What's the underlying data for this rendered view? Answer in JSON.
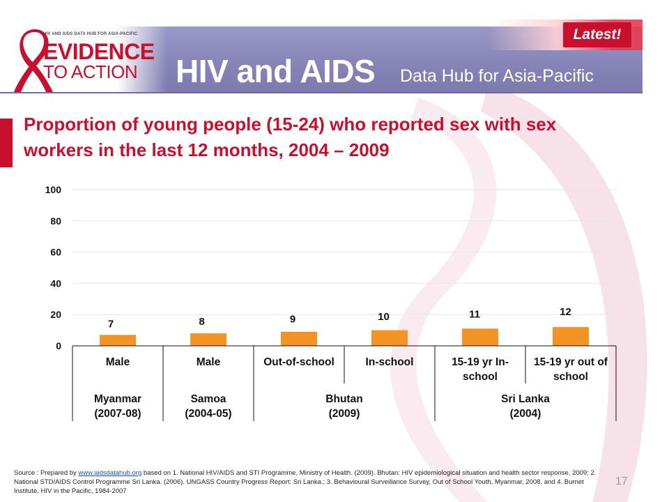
{
  "header": {
    "logo_small_text": "HIV AND AIDS DATA HUB FOR ASIA-PACIFIC",
    "logo_line1": "EVIDENCE",
    "logo_line2": "TO ACTION",
    "title": "HIV and AIDS",
    "subtitle": "Data Hub for Asia-Pacific",
    "badge": "Latest!"
  },
  "slide": {
    "title": "Proportion of young people (15-24) who reported sex with sex workers in the last 12 months, 2004 – 2009",
    "page_number": "17"
  },
  "source": {
    "prefix": "Source : Prepared by ",
    "link_text": "www.aidsdatahub.org",
    "rest": " based on 1. National HIV/AIDS and STI Programme, Ministry of Health. (2009).  Bhutan: HIV epidemiological situation and health sector response, 2009; 2. National STD/AIDS Control Programme Sri Lanka. (2006). UNGASS Country Progress Report: Sri Lanka.; 3. Behavioural Surveillance Survey, Out of School Youth, Myanmar, 2008, and 4. Burnet Institute, HIV in the Pacific, 1984-2007"
  },
  "colors": {
    "accent": "#c8102e",
    "bar": "#f39323",
    "header": "#8684b6"
  },
  "chart_data": {
    "type": "bar",
    "categories": [
      "Male",
      "Male",
      "Out-of-school",
      "In-school",
      "15-19 yr In-school",
      "15-19 yr out of school"
    ],
    "category_lines": [
      [
        "Male"
      ],
      [
        "Male"
      ],
      [
        "Out-of-school"
      ],
      [
        "In-school"
      ],
      [
        "15-19 yr In-",
        "school"
      ],
      [
        "15-19 yr out of",
        "school"
      ]
    ],
    "values": [
      7,
      8,
      9,
      10,
      11,
      12
    ],
    "data_labels": [
      "7",
      "8",
      "9",
      "10",
      "11",
      "12"
    ],
    "groups": [
      {
        "lines": [
          "Myanmar",
          "(2007-08)"
        ],
        "span": [
          0,
          0
        ]
      },
      {
        "lines": [
          "Samoa",
          "(2004-05)"
        ],
        "span": [
          1,
          1
        ]
      },
      {
        "lines": [
          "Bhutan",
          "(2009)"
        ],
        "span": [
          2,
          3
        ]
      },
      {
        "lines": [
          "Sri Lanka",
          "(2004)"
        ],
        "span": [
          4,
          5
        ]
      }
    ],
    "yticks": [
      "0",
      "20",
      "40",
      "60",
      "80",
      "100"
    ],
    "ylim": [
      0,
      100
    ],
    "grid": true,
    "legend": "none"
  }
}
